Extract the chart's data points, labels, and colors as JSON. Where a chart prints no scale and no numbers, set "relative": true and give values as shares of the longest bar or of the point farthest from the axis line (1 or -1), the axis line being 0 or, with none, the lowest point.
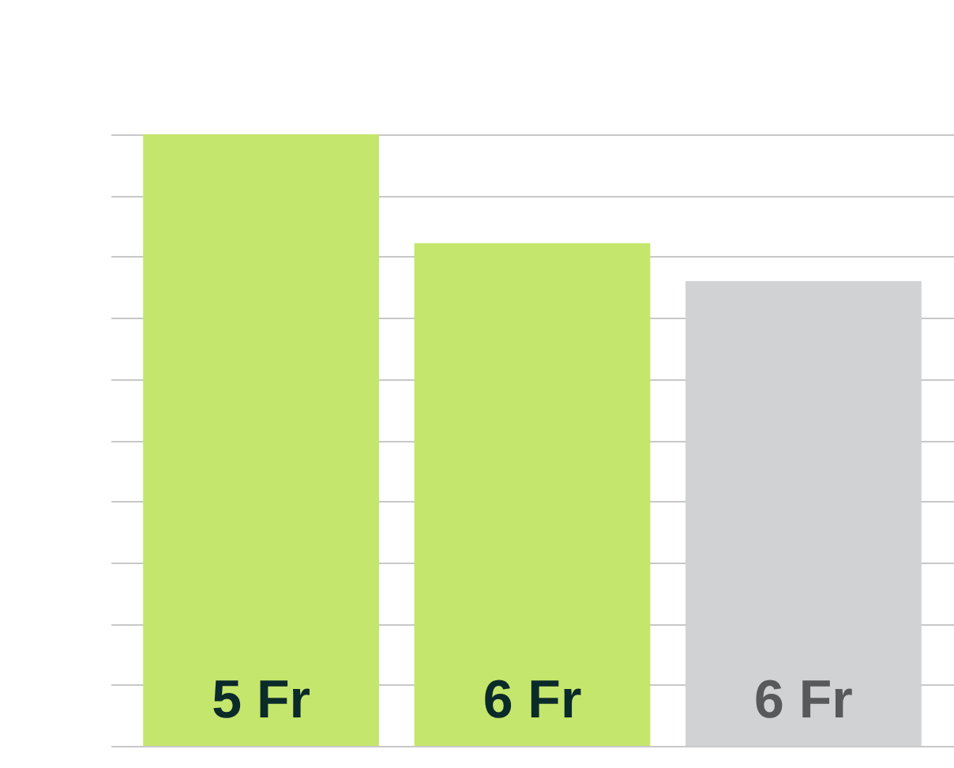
{
  "chart_data": {
    "type": "bar",
    "relative": true,
    "grid": true,
    "categories": [
      "5 Fr",
      "6 Fr",
      "6 Fr"
    ],
    "values": [
      1,
      0.822,
      0.76
    ],
    "colors": [
      "#c5e66c",
      "#c5e66c",
      "#d1d2d4"
    ]
  }
}
